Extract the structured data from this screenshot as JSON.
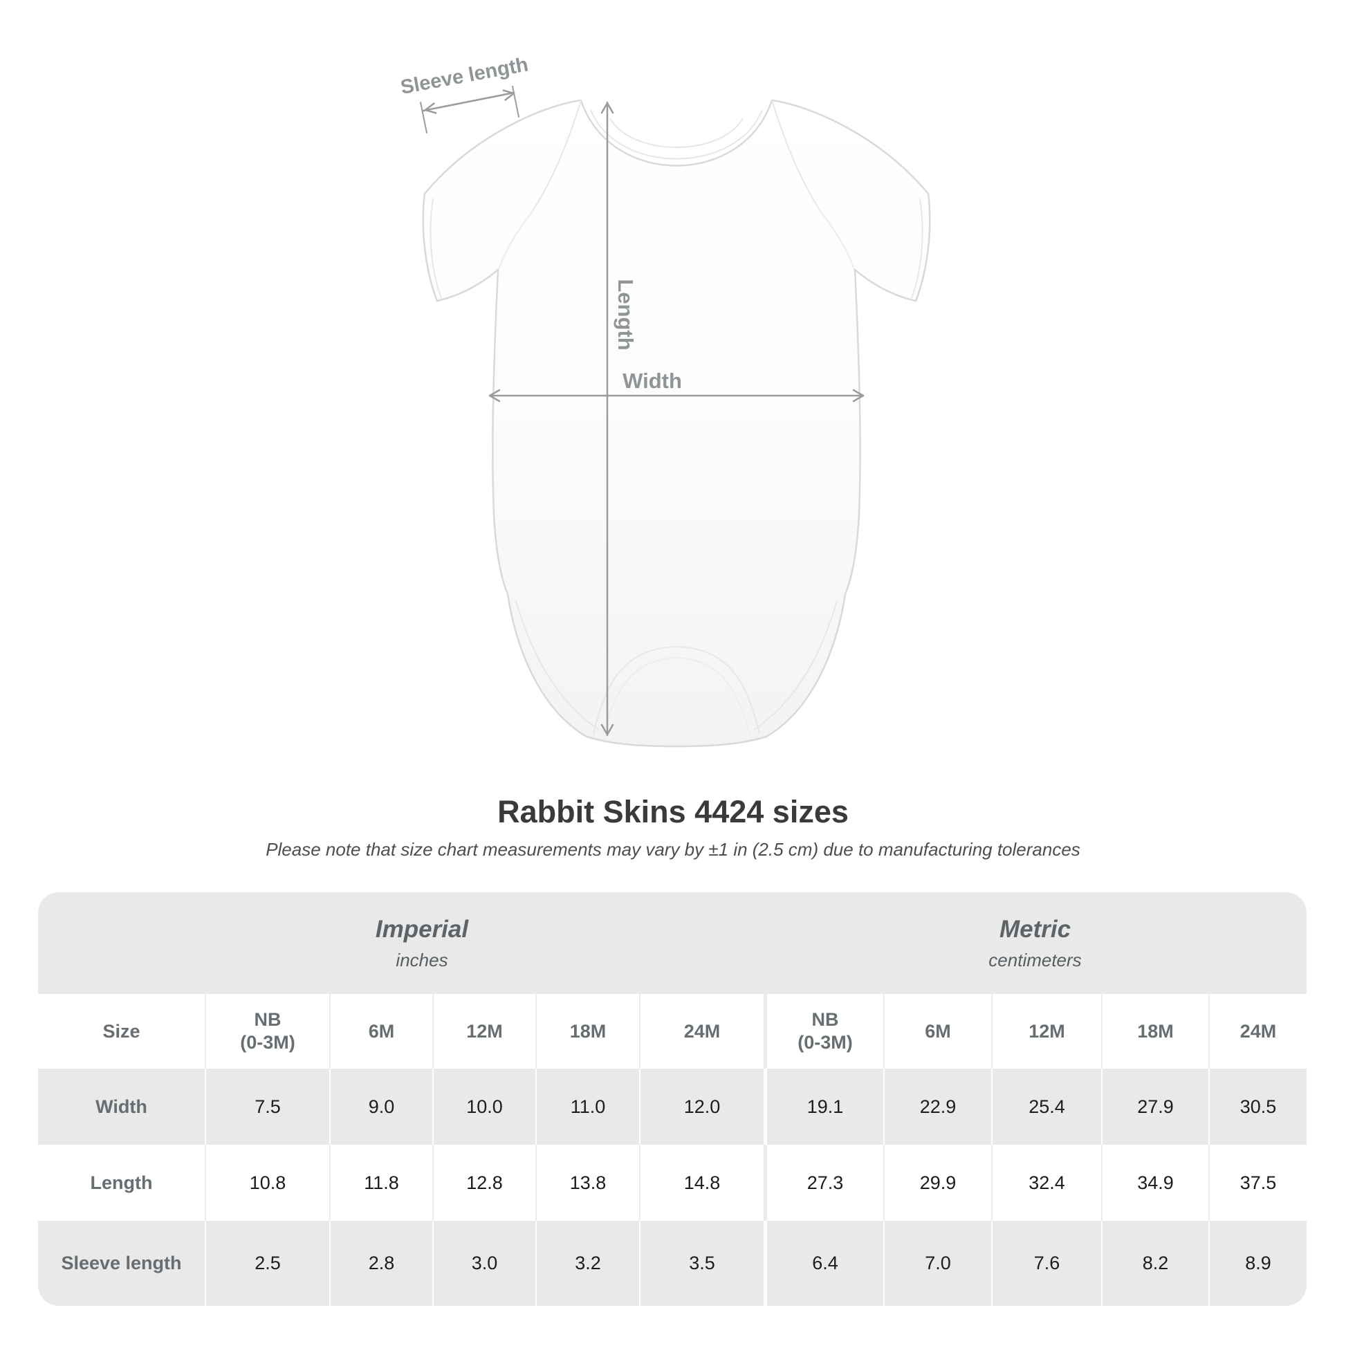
{
  "figure": {
    "sleeve_label": "Sleeve length",
    "length_label": "Length",
    "width_label": "Width"
  },
  "title": "Rabbit Skins 4424 sizes",
  "subtitle": "Please note that size chart measurements may vary by ±1 in (2.5 cm) due to manufacturing tolerances",
  "colors": {
    "annotation_gray": "#9b9b9b",
    "annotation_text": "#8f9497",
    "title_text": "#3a3a3a",
    "subtitle_text": "#4d4d4d",
    "table_band": "#e9e9e9",
    "table_header_text": "#676e72",
    "table_value_text": "#1c1c1c"
  },
  "table": {
    "corner_label": "Size",
    "groups": [
      {
        "label": "Imperial",
        "unit": "inches"
      },
      {
        "label": "Metric",
        "unit": "centimeters"
      }
    ],
    "columns": [
      "NB\n(0-3M)",
      "6M",
      "12M",
      "18M",
      "24M",
      "NB\n(0-3M)",
      "6M",
      "12M",
      "18M",
      "24M"
    ],
    "rows": [
      {
        "label": "Width",
        "values": [
          "7.5",
          "9.0",
          "10.0",
          "11.0",
          "12.0",
          "19.1",
          "22.9",
          "25.4",
          "27.9",
          "30.5"
        ]
      },
      {
        "label": "Length",
        "values": [
          "10.8",
          "11.8",
          "12.8",
          "13.8",
          "14.8",
          "27.3",
          "29.9",
          "32.4",
          "34.9",
          "37.5"
        ]
      },
      {
        "label": "Sleeve length",
        "values": [
          "2.5",
          "2.8",
          "3.0",
          "3.2",
          "3.5",
          "6.4",
          "7.0",
          "7.6",
          "8.2",
          "8.9"
        ]
      }
    ]
  },
  "chart_data": {
    "type": "table",
    "title": "Rabbit Skins 4424 sizes",
    "note": "Please note that size chart measurements may vary by ±1 in (2.5 cm) due to manufacturing tolerances",
    "sizes": [
      "NB (0-3M)",
      "6M",
      "12M",
      "18M",
      "24M"
    ],
    "measurements": {
      "imperial_inches": {
        "Width": [
          7.5,
          9.0,
          10.0,
          11.0,
          12.0
        ],
        "Length": [
          10.8,
          11.8,
          12.8,
          13.8,
          14.8
        ],
        "Sleeve length": [
          2.5,
          2.8,
          3.0,
          3.2,
          3.5
        ]
      },
      "metric_centimeters": {
        "Width": [
          19.1,
          22.9,
          25.4,
          27.9,
          30.5
        ],
        "Length": [
          27.3,
          29.9,
          32.4,
          34.9,
          37.5
        ],
        "Sleeve length": [
          6.4,
          7.0,
          7.6,
          8.2,
          8.9
        ]
      }
    }
  }
}
